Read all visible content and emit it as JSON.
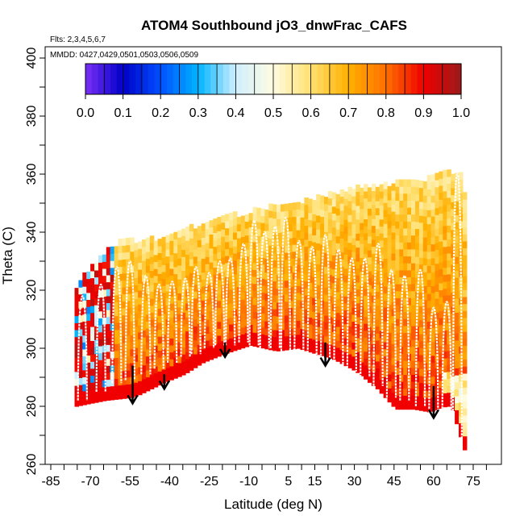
{
  "chart_data": {
    "type": "heatmap",
    "title": "ATOM4 Southbound jO3_dnwFrac_CAFS",
    "flights_note": "Flts: 2,3,4,5,6,7",
    "dates_note": "MMDD: 0427,0429,0501,0503,0506,0509",
    "xlabel": "Latitude (deg N)",
    "ylabel": "Theta (C)",
    "xlim": [
      -87,
      80
    ],
    "ylim": [
      260,
      405
    ],
    "x_ticks": [
      -85,
      -70,
      -55,
      -40,
      -25,
      -10,
      5,
      15,
      30,
      45,
      60,
      75
    ],
    "x_tick_labels": [
      "-85",
      "-70",
      "-55",
      "-40",
      "-25",
      "-10",
      "5",
      "15",
      "30",
      "45",
      "60",
      "75"
    ],
    "y_ticks": [
      260,
      280,
      300,
      320,
      340,
      360,
      380,
      400
    ],
    "y_tick_labels": [
      "260",
      "280",
      "300",
      "320",
      "340",
      "360",
      "380",
      "400"
    ],
    "colorbar": {
      "min": 0.0,
      "max": 1.0,
      "ticks": [
        0.0,
        0.1,
        0.2,
        0.3,
        0.4,
        0.5,
        0.6,
        0.7,
        0.8,
        0.9,
        1.0
      ],
      "tick_labels": [
        "0.0",
        "0.1",
        "0.2",
        "0.3",
        "0.4",
        "0.5",
        "0.6",
        "0.7",
        "0.8",
        "0.9",
        "1.0"
      ],
      "colors": [
        "#7b2ff7",
        "#0000c8",
        "#0050ff",
        "#00b4ff",
        "#cfefff",
        "#fffbe0",
        "#ffe070",
        "#ffb000",
        "#ff7000",
        "#f00000",
        "#9a1a1a"
      ]
    },
    "surface_boundary": {
      "lat": [
        -76,
        -65,
        -55,
        -52,
        -43,
        -35,
        -28,
        -20,
        -10,
        0,
        8,
        15,
        22,
        30,
        38,
        45,
        52,
        58,
        64
      ],
      "theta": [
        280,
        282,
        283,
        284,
        288,
        291,
        295,
        298,
        301,
        299,
        300,
        298,
        296,
        292,
        286,
        279,
        279,
        278,
        280
      ]
    },
    "top_boundary": {
      "lat": [
        -76,
        -70,
        -62,
        -55,
        -45,
        -35,
        -25,
        -15,
        -5,
        5,
        15,
        25,
        35,
        45,
        55,
        63,
        67,
        70,
        72
      ],
      "theta": [
        320,
        328,
        335,
        336,
        337,
        340,
        343,
        345,
        347,
        349,
        351,
        353,
        355,
        356,
        357,
        359,
        360,
        358,
        346
      ]
    },
    "flight_profiles": {
      "lat_peak": [
        -73,
        -66,
        -60,
        -55,
        -49,
        -44,
        -39,
        -34,
        -30,
        -25,
        -21,
        -17,
        -12,
        -8,
        -4,
        0,
        4,
        9,
        14,
        19,
        24,
        29,
        34,
        39,
        44,
        49,
        55,
        60,
        65,
        69
      ],
      "theta_peak": [
        318,
        322,
        328,
        330,
        325,
        322,
        323,
        324,
        328,
        326,
        330,
        331,
        336,
        344,
        340,
        342,
        345,
        337,
        335,
        339,
        334,
        331,
        331,
        336,
        327,
        325,
        327,
        314,
        316,
        360
      ],
      "theta_bottom": [
        281,
        284,
        287,
        288,
        290,
        292,
        294,
        296,
        297,
        299,
        300,
        300,
        301,
        300,
        299,
        299,
        298,
        296,
        294,
        293,
        292,
        291,
        289,
        286,
        282,
        281,
        279,
        277,
        277,
        264
      ]
    },
    "descent_arrows": {
      "lat": [
        -54,
        -42,
        -19,
        19,
        60
      ],
      "theta_top": [
        294,
        291,
        302,
        302,
        287
      ],
      "theta_tip": [
        281,
        286,
        297,
        294,
        276
      ]
    }
  }
}
